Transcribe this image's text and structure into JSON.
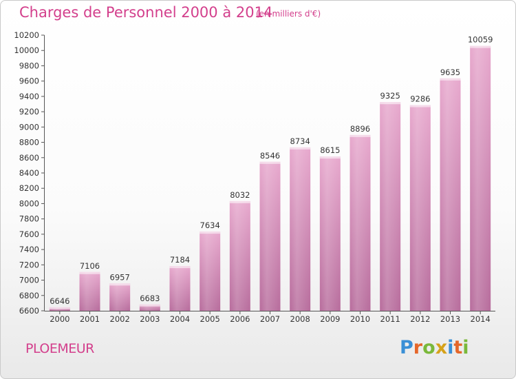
{
  "header": {
    "title": "Charges de Personnel 2000 à 2014",
    "subtitle": "(en milliers d'€)"
  },
  "footer": {
    "city": "PLOEMEUR",
    "brand_letters": [
      "P",
      "r",
      "o",
      "x",
      "i",
      "t",
      "i"
    ],
    "brand_colors": [
      "#3a8fd6",
      "#e5672a",
      "#7ab83a",
      "#d6a21a",
      "#3a8fd6",
      "#e5672a",
      "#7ab83a"
    ]
  },
  "chart_data": {
    "type": "bar",
    "title": "Charges de Personnel 2000 à 2014",
    "subtitle": "(en milliers d'€)",
    "xlabel": "",
    "ylabel": "",
    "categories": [
      "2000",
      "2001",
      "2002",
      "2003",
      "2004",
      "2005",
      "2006",
      "2007",
      "2008",
      "2009",
      "2010",
      "2011",
      "2012",
      "2013",
      "2014"
    ],
    "values": [
      6646,
      7106,
      6957,
      6683,
      7184,
      7634,
      8032,
      8546,
      8734,
      8615,
      8896,
      9325,
      9286,
      9635,
      10059
    ],
    "ylim": [
      6600,
      10200
    ],
    "yticks": [
      6600,
      6800,
      7000,
      7200,
      7400,
      7600,
      7800,
      8000,
      8200,
      8400,
      8600,
      8800,
      9000,
      9200,
      9400,
      9600,
      9800,
      10000,
      10200
    ],
    "grid": false,
    "bar_color": "#d883b4"
  }
}
